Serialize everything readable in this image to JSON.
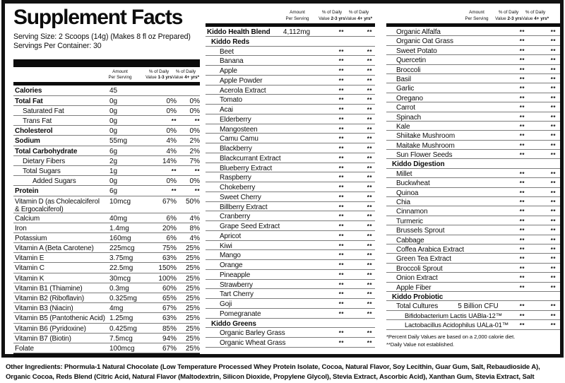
{
  "title": "Supplement Facts",
  "serving_size": "Serving Size: 2 Scoops (14g) (Makes 8 fl oz Prepared)",
  "servings_per_container": "Servings Per Container: 30",
  "panels": {
    "left": {
      "header": {
        "a1": "Amount",
        "a2": "Per Serving",
        "d1": "% of Daily",
        "d1v": "Value",
        "d1r": "1-3 yrs",
        "d2": "% of Daily",
        "d2v": "Value",
        "d2r": "4+ yrs*"
      },
      "rows": [
        {
          "l": "Calories",
          "a": "45",
          "p1": "",
          "p2": "",
          "b": 1,
          "i": 0
        },
        {
          "l": "Total Fat",
          "a": "0g",
          "p1": "0%",
          "p2": "0%",
          "b": 1,
          "i": 0
        },
        {
          "l": "Saturated Fat",
          "a": "0g",
          "p1": "0%",
          "p2": "0%",
          "i": 1
        },
        {
          "l": "Trans Fat",
          "a": "0g",
          "p1": "**",
          "p2": "**",
          "i": 1
        },
        {
          "l": "Cholesterol",
          "a": "0g",
          "p1": "0%",
          "p2": "0%",
          "b": 1,
          "i": 0
        },
        {
          "l": "Sodium",
          "a": "55mg",
          "p1": "4%",
          "p2": "2%",
          "b": 1,
          "i": 0
        },
        {
          "l": "Total Carbohydrate",
          "a": "6g",
          "p1": "4%",
          "p2": "2%",
          "b": 1,
          "i": 0
        },
        {
          "l": "Dietary Fibers",
          "a": "2g",
          "p1": "14%",
          "p2": "7%",
          "i": 1
        },
        {
          "l": "Total Sugars",
          "a": "1g",
          "p1": "**",
          "p2": "**",
          "i": 1
        },
        {
          "l": "Added Sugars",
          "a": "0g",
          "p1": "0%",
          "p2": "0%",
          "i": 2
        },
        {
          "l": "Protein",
          "a": "6g",
          "p1": "**",
          "p2": "**",
          "b": 1,
          "i": 0
        },
        {
          "l": "Vitamin D (as Cholecalciferol\n& Ergocalciferol)",
          "a": "10mcg",
          "p1": "67%",
          "p2": "50%",
          "i": 0,
          "t": 1,
          "w": 1
        },
        {
          "l": "Calcium",
          "a": "40mg",
          "p1": "6%",
          "p2": "4%",
          "i": 0
        },
        {
          "l": "Iron",
          "a": "1.4mg",
          "p1": "20%",
          "p2": "8%",
          "i": 0
        },
        {
          "l": "Potassium",
          "a": "160mg",
          "p1": "6%",
          "p2": "4%",
          "i": 0
        },
        {
          "l": "Vitamin A (Beta Carotene)",
          "a": "225mcg",
          "p1": "75%",
          "p2": "25%",
          "i": 0
        },
        {
          "l": "Vitamin E",
          "a": "3.75mg",
          "p1": "63%",
          "p2": "25%",
          "i": 0
        },
        {
          "l": "Vitamin C",
          "a": "22.5mg",
          "p1": "150%",
          "p2": "25%",
          "i": 0
        },
        {
          "l": "Vitamin K",
          "a": "30mcg",
          "p1": "100%",
          "p2": "25%",
          "i": 0
        },
        {
          "l": "Vitamin B1 (Thiamine)",
          "a": "0.3mg",
          "p1": "60%",
          "p2": "25%",
          "i": 0
        },
        {
          "l": "Vitamin B2 (Riboflavin)",
          "a": "0.325mg",
          "p1": "65%",
          "p2": "25%",
          "i": 0
        },
        {
          "l": "Vitamin B3 (Niacin)",
          "a": "4mg",
          "p1": "67%",
          "p2": "25%",
          "i": 0
        },
        {
          "l": "Vitamin B5 (Pantothenic Acid)",
          "a": "1.25mg",
          "p1": "63%",
          "p2": "25%",
          "i": 0
        },
        {
          "l": "Vitamin B6 (Pyridoxine)",
          "a": "0.425mg",
          "p1": "85%",
          "p2": "25%",
          "i": 0
        },
        {
          "l": "Vitamin B7 (Biotin)",
          "a": "7.5mcg",
          "p1": "94%",
          "p2": "25%",
          "i": 0
        },
        {
          "l": "Folate",
          "a": "100mcg",
          "p1": "67%",
          "p2": "25%",
          "i": 0
        }
      ]
    },
    "mid": {
      "header": {
        "a1": "Amount",
        "a2": "Per Serving",
        "d1": "% of Daily",
        "d1v": "Value",
        "d1r": "2-3 yrs",
        "d2": "% of Daily",
        "d2v": "Value",
        "d2r": "4+ yrs*"
      },
      "rows": [
        {
          "l": "Kiddo Health Blend",
          "a": "4,112mg",
          "p1": "**",
          "p2": "**",
          "b": 1,
          "i": 0
        },
        {
          "l": "Kiddo Reds",
          "s": 1,
          "i": 1
        },
        {
          "l": "Beet",
          "p1": "**",
          "p2": "**",
          "i": 2
        },
        {
          "l": "Banana",
          "p1": "**",
          "p2": "**",
          "i": 2
        },
        {
          "l": "Apple",
          "p1": "**",
          "p2": "**",
          "i": 2
        },
        {
          "l": "Apple Powder",
          "p1": "**",
          "p2": "**",
          "i": 2
        },
        {
          "l": "Acerola Extract",
          "p1": "**",
          "p2": "**",
          "i": 2
        },
        {
          "l": "Tomato",
          "p1": "**",
          "p2": "**",
          "i": 2
        },
        {
          "l": "Acai",
          "p1": "**",
          "p2": "**",
          "i": 2
        },
        {
          "l": "Elderberry",
          "p1": "**",
          "p2": "**",
          "i": 2
        },
        {
          "l": "Mangosteen",
          "p1": "**",
          "p2": "**",
          "i": 2
        },
        {
          "l": "Camu Camu",
          "p1": "**",
          "p2": "**",
          "i": 2
        },
        {
          "l": "Blackberry",
          "p1": "**",
          "p2": "**",
          "i": 2
        },
        {
          "l": "Blackcurrant Extract",
          "p1": "**",
          "p2": "**",
          "i": 2
        },
        {
          "l": "Blueberry Extract",
          "p1": "**",
          "p2": "**",
          "i": 2
        },
        {
          "l": "Raspberry",
          "p1": "**",
          "p2": "**",
          "i": 2
        },
        {
          "l": "Chokeberry",
          "p1": "**",
          "p2": "**",
          "i": 2
        },
        {
          "l": "Sweet Cherry",
          "p1": "**",
          "p2": "**",
          "i": 2
        },
        {
          "l": "Billberry Extract",
          "p1": "**",
          "p2": "**",
          "i": 2
        },
        {
          "l": "Cranberry",
          "p1": "**",
          "p2": "**",
          "i": 2
        },
        {
          "l": "Grape Seed Extract",
          "p1": "**",
          "p2": "**",
          "i": 2
        },
        {
          "l": "Apricot",
          "p1": "**",
          "p2": "**",
          "i": 2
        },
        {
          "l": "Kiwi",
          "p1": "**",
          "p2": "**",
          "i": 2
        },
        {
          "l": "Mango",
          "p1": "**",
          "p2": "**",
          "i": 2
        },
        {
          "l": "Orange",
          "p1": "**",
          "p2": "**",
          "i": 2
        },
        {
          "l": "Pineapple",
          "p1": "**",
          "p2": "**",
          "i": 2
        },
        {
          "l": "Strawberry",
          "p1": "**",
          "p2": "**",
          "i": 2
        },
        {
          "l": "Tart Cherry",
          "p1": "**",
          "p2": "**",
          "i": 2
        },
        {
          "l": "Goji",
          "p1": "**",
          "p2": "**",
          "i": 2
        },
        {
          "l": "Pomegranate",
          "p1": "**",
          "p2": "**",
          "i": 2
        },
        {
          "l": "Kiddo Greens",
          "s": 1,
          "i": 1
        },
        {
          "l": "Organic Barley Grass",
          "p1": "**",
          "p2": "**",
          "i": 2
        },
        {
          "l": "Organic Wheat Grass",
          "p1": "**",
          "p2": "**",
          "i": 2
        }
      ]
    },
    "right": {
      "header": {
        "a1": "Amount",
        "a2": "Per Serving",
        "d1": "% of Daily",
        "d1v": "Value",
        "d1r": "2-3 yrs",
        "d2": "% of Daily",
        "d2v": "Value",
        "d2r": "4+ yrs*"
      },
      "rows": [
        {
          "l": "Organic Alfalfa",
          "p1": "**",
          "p2": "**",
          "i": 2
        },
        {
          "l": "Organic Oat Grass",
          "p1": "**",
          "p2": "**",
          "i": 2
        },
        {
          "l": "Sweet Potato",
          "p1": "**",
          "p2": "**",
          "i": 2
        },
        {
          "l": "Quercetin",
          "p1": "**",
          "p2": "**",
          "i": 2
        },
        {
          "l": "Broccoli",
          "p1": "**",
          "p2": "**",
          "i": 2
        },
        {
          "l": "Basil",
          "p1": "**",
          "p2": "**",
          "i": 2
        },
        {
          "l": "Garlic",
          "p1": "**",
          "p2": "**",
          "i": 2
        },
        {
          "l": "Oregano",
          "p1": "**",
          "p2": "**",
          "i": 2
        },
        {
          "l": "Carrot",
          "p1": "**",
          "p2": "**",
          "i": 2
        },
        {
          "l": "Spinach",
          "p1": "**",
          "p2": "**",
          "i": 2
        },
        {
          "l": "Kale",
          "p1": "**",
          "p2": "**",
          "i": 2
        },
        {
          "l": "Shiitake Mushroom",
          "p1": "**",
          "p2": "**",
          "i": 2
        },
        {
          "l": "Maitake Mushroom",
          "p1": "**",
          "p2": "**",
          "i": 2
        },
        {
          "l": "Sun Flower Seeds",
          "p1": "**",
          "p2": "**",
          "i": 2
        },
        {
          "l": "Kiddo Digestion",
          "s": 1,
          "i": 1
        },
        {
          "l": "Millet",
          "p1": "**",
          "p2": "**",
          "i": 2
        },
        {
          "l": "Buckwheat",
          "p1": "**",
          "p2": "**",
          "i": 2
        },
        {
          "l": "Quinoa",
          "p1": "**",
          "p2": "**",
          "i": 2
        },
        {
          "l": "Chia",
          "p1": "**",
          "p2": "**",
          "i": 2
        },
        {
          "l": "Cinnamon",
          "p1": "**",
          "p2": "**",
          "i": 2
        },
        {
          "l": "Turmeric",
          "p1": "**",
          "p2": "**",
          "i": 2
        },
        {
          "l": "Brussels Sprout",
          "p1": "**",
          "p2": "**",
          "i": 2
        },
        {
          "l": "Cabbage",
          "p1": "**",
          "p2": "**",
          "i": 2
        },
        {
          "l": "Coffea Arabica Extract",
          "p1": "**",
          "p2": "**",
          "i": 2
        },
        {
          "l": "Green Tea Extract",
          "p1": "**",
          "p2": "**",
          "i": 2
        },
        {
          "l": "Broccoli Sprout",
          "p1": "**",
          "p2": "**",
          "i": 2
        },
        {
          "l": "Onion Extract",
          "p1": "**",
          "p2": "**",
          "i": 2
        },
        {
          "l": "Apple Fiber",
          "p1": "**",
          "p2": "**",
          "i": 2
        },
        {
          "l": "Kiddo Probiotic",
          "s": 1,
          "i": 1
        },
        {
          "l": "Total Cultures",
          "a": "5 Billion CFU",
          "p1": "**",
          "p2": "**",
          "i": 2
        },
        {
          "l": "Bifidobacterium Lactis UABla-12™",
          "p1": "**",
          "p2": "**",
          "i": 3,
          "d": 1
        },
        {
          "l": "Lactobacillus Acidophilus UALa-01™",
          "p1": "**",
          "p2": "**",
          "i": 3,
          "d": 1
        }
      ],
      "footnotes": [
        "*Percent Daily Values are based on a 2,000 calorie diet.",
        "**Daily Value not established."
      ]
    }
  },
  "other_ingredients": {
    "line1": "Other Ingredients: Phormula-1 Natural Chocolate (Low Temperature Processed Whey Protein Isolate, Cocoa, Natural Flavor, Soy Lecithin, Guar Gum, Salt, Rebaudioside A),",
    "line2": "Organic Cocoa, Reds Blend (Citric Acid, Natural Flavor (Maltodextrin, Silicon Dioxide, Propylene Glycol), Stevia Extract, Ascorbic Acid), Xanthan Gum, Stevia Extract, Salt"
  }
}
